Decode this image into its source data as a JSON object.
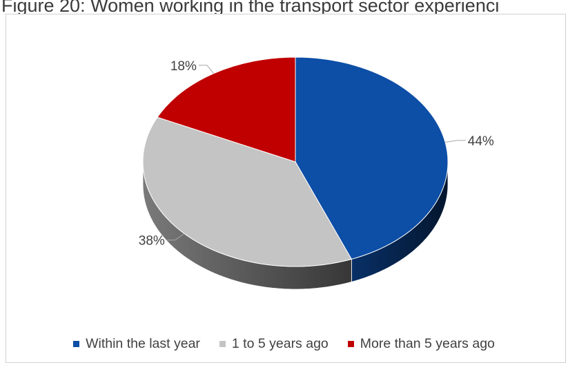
{
  "figure": {
    "title": "Figure 20: Women working in the transport sector experienci"
  },
  "chart_data": {
    "type": "pie",
    "style": "3d",
    "categories": [
      "Within the last year",
      "1 to 5 years ago",
      "More than 5 years ago"
    ],
    "values": [
      44,
      38,
      18
    ],
    "data_labels": [
      "44%",
      "38%",
      "18%"
    ],
    "colors": [
      "#0d4ea6",
      "#c4c4c4",
      "#c00000"
    ],
    "legend_position": "bottom"
  }
}
